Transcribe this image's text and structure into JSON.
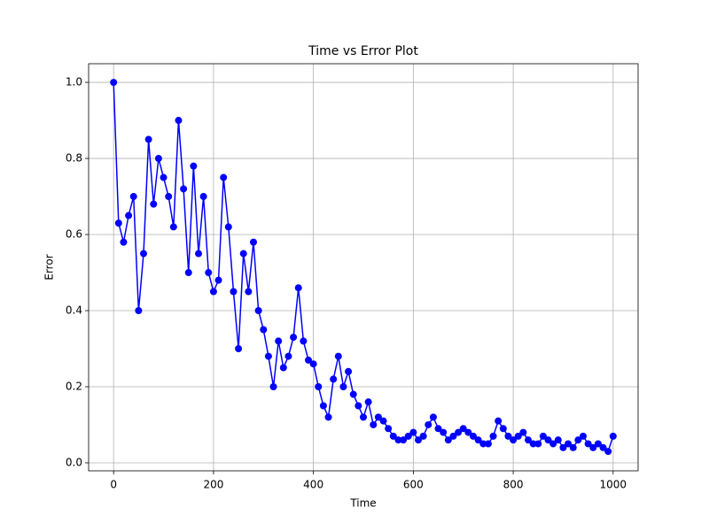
{
  "chart_data": {
    "type": "line",
    "title": "Time vs Error Plot",
    "x_label": "Time",
    "y_label": "Error",
    "x": [
      0,
      10,
      20,
      30,
      40,
      50,
      60,
      70,
      80,
      90,
      100,
      110,
      120,
      130,
      140,
      150,
      160,
      170,
      180,
      190,
      200,
      210,
      220,
      230,
      240,
      250,
      260,
      270,
      280,
      290,
      300,
      310,
      320,
      330,
      340,
      350,
      360,
      370,
      380,
      390,
      400,
      410,
      420,
      430,
      440,
      450,
      460,
      470,
      480,
      490,
      500,
      510,
      520,
      530,
      540,
      550,
      560,
      570,
      580,
      590,
      600,
      610,
      620,
      630,
      640,
      650,
      660,
      670,
      680,
      690,
      700,
      710,
      720,
      730,
      740,
      750,
      760,
      770,
      780,
      790,
      800,
      810,
      820,
      830,
      840,
      850,
      860,
      870,
      880,
      890,
      900,
      910,
      920,
      930,
      940,
      950,
      960,
      970,
      980,
      990,
      1000
    ],
    "series": [
      {
        "name": "Error",
        "color": "#0000ff",
        "values": [
          1.0,
          0.63,
          0.58,
          0.65,
          0.7,
          0.4,
          0.55,
          0.85,
          0.68,
          0.8,
          0.75,
          0.7,
          0.62,
          0.9,
          0.72,
          0.5,
          0.78,
          0.55,
          0.7,
          0.5,
          0.45,
          0.48,
          0.75,
          0.62,
          0.45,
          0.3,
          0.55,
          0.45,
          0.58,
          0.4,
          0.35,
          0.28,
          0.2,
          0.32,
          0.25,
          0.28,
          0.33,
          0.46,
          0.32,
          0.27,
          0.26,
          0.2,
          0.15,
          0.12,
          0.22,
          0.28,
          0.2,
          0.24,
          0.18,
          0.15,
          0.12,
          0.16,
          0.1,
          0.12,
          0.11,
          0.09,
          0.07,
          0.06,
          0.06,
          0.07,
          0.08,
          0.06,
          0.07,
          0.1,
          0.12,
          0.09,
          0.08,
          0.06,
          0.07,
          0.08,
          0.09,
          0.08,
          0.07,
          0.06,
          0.05,
          0.05,
          0.07,
          0.11,
          0.09,
          0.07,
          0.06,
          0.07,
          0.08,
          0.06,
          0.05,
          0.05,
          0.07,
          0.06,
          0.05,
          0.06,
          0.04,
          0.05,
          0.04,
          0.06,
          0.07,
          0.05,
          0.04,
          0.05,
          0.04,
          0.03,
          0.07
        ]
      }
    ],
    "xlim": [
      -50,
      1050
    ],
    "ylim": [
      -0.021,
      1.049
    ],
    "xticks": [
      0,
      200,
      400,
      600,
      800,
      1000
    ],
    "yticks": [
      {
        "value": 0,
        "label": "0.0"
      },
      0.2,
      0.4,
      0.6,
      0.8,
      {
        "value": 1,
        "label": "1.0"
      }
    ],
    "grid": true
  }
}
